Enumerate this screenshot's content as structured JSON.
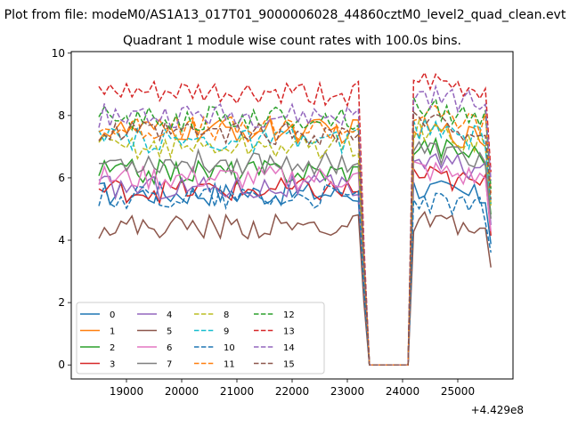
{
  "chart_data": {
    "type": "line",
    "suptitle": "Plot from file: modeM0/AS1A13_017T01_9000006028_44860cztM0_level2_quad_clean.evt",
    "title": "Quadrant 1 module wise count rates with 100.0s bins.",
    "xlabel": "",
    "ylabel": "",
    "x_offset_label": "+4.429e8",
    "xlim": [
      18000,
      26000
    ],
    "ylim": [
      -0.45,
      10.05
    ],
    "x_ticks": [
      19000,
      20000,
      21000,
      22000,
      23000,
      24000,
      25000
    ],
    "y_ticks": [
      0,
      2,
      4,
      6,
      8,
      10
    ],
    "x_ticks_labels": [
      "19000",
      "20000",
      "21000",
      "22000",
      "23000",
      "24000",
      "25000"
    ],
    "y_ticks_labels": [
      "0",
      "2",
      "4",
      "6",
      "8",
      "10"
    ],
    "grid": false,
    "legend_placement": "lower-left",
    "legend_columns": 4,
    "gap_x": [
      23300,
      24000
    ],
    "segment1_start": 18500,
    "segment2_start": 24200,
    "x_end": 25600,
    "bin_width": 100,
    "series": [
      {
        "name": "0",
        "color": "#1f77b4",
        "dash": "solid",
        "level1": 5.5,
        "level2": 5.7
      },
      {
        "name": "1",
        "color": "#ff7f0e",
        "dash": "solid",
        "level1": 7.5,
        "level2": 7.6
      },
      {
        "name": "2",
        "color": "#2ca02c",
        "dash": "solid",
        "level1": 6.2,
        "level2": 7.1
      },
      {
        "name": "3",
        "color": "#d62728",
        "dash": "solid",
        "level1": 5.6,
        "level2": 6.1
      },
      {
        "name": "4",
        "color": "#9467bd",
        "dash": "solid",
        "level1": 5.7,
        "level2": 6.6
      },
      {
        "name": "5",
        "color": "#8c564b",
        "dash": "solid",
        "level1": 4.45,
        "level2": 4.6
      },
      {
        "name": "6",
        "color": "#e377c2",
        "dash": "solid",
        "level1": 6.0,
        "level2": 6.3
      },
      {
        "name": "7",
        "color": "#7f7f7f",
        "dash": "solid",
        "level1": 6.5,
        "level2": 6.9
      },
      {
        "name": "8",
        "color": "#bcbd22",
        "dash": "dashed",
        "level1": 7.0,
        "level2": 7.5
      },
      {
        "name": "9",
        "color": "#17becf",
        "dash": "dashed",
        "level1": 7.2,
        "level2": 7.6
      },
      {
        "name": "10",
        "color": "#1f77b4",
        "dash": "dashed",
        "level1": 5.4,
        "level2": 5.3
      },
      {
        "name": "11",
        "color": "#ff7f0e",
        "dash": "dashed",
        "level1": 7.6,
        "level2": 8.1
      },
      {
        "name": "12",
        "color": "#2ca02c",
        "dash": "dashed",
        "level1": 7.9,
        "level2": 8.3
      },
      {
        "name": "13",
        "color": "#d62728",
        "dash": "dashed",
        "level1": 8.7,
        "level2": 9.1
      },
      {
        "name": "14",
        "color": "#9467bd",
        "dash": "dashed",
        "level1": 8.0,
        "level2": 8.7
      },
      {
        "name": "15",
        "color": "#8c564b",
        "dash": "dashed",
        "level1": 7.4,
        "level2": 7.8
      }
    ]
  }
}
